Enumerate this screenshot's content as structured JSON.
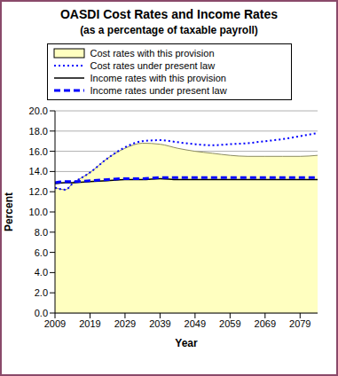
{
  "chart_data": {
    "type": "line",
    "title": "OASDI Cost Rates and Income Rates",
    "subtitle": "(as a percentage of taxable payroll)",
    "x_label": "Year",
    "y_label": "Percent",
    "x": [
      2009,
      2012,
      2014,
      2019,
      2024,
      2029,
      2034,
      2039,
      2044,
      2049,
      2054,
      2059,
      2064,
      2069,
      2074,
      2079,
      2084
    ],
    "series": [
      {
        "name": "Cost rates with this provision",
        "type": "area",
        "color": "#ffffc0",
        "line_style": "solid",
        "values": [
          12.4,
          12.2,
          12.8,
          13.9,
          15.3,
          16.3,
          16.8,
          16.7,
          16.3,
          16.0,
          15.8,
          15.6,
          15.5,
          15.5,
          15.5,
          15.5,
          15.6
        ]
      },
      {
        "name": "Cost rates under present law",
        "type": "line",
        "color": "#0000ff",
        "line_style": "dotted",
        "values": [
          12.4,
          12.2,
          12.8,
          13.9,
          15.3,
          16.4,
          17.0,
          17.1,
          16.9,
          16.7,
          16.6,
          16.7,
          16.8,
          17.0,
          17.2,
          17.5,
          17.8
        ]
      },
      {
        "name": "Income rates with this provision",
        "type": "line",
        "color": "#000000",
        "line_style": "solid",
        "values": [
          12.8,
          12.9,
          12.9,
          13.0,
          13.1,
          13.2,
          13.2,
          13.3,
          13.2,
          13.2,
          13.2,
          13.2,
          13.2,
          13.2,
          13.2,
          13.2,
          13.2
        ]
      },
      {
        "name": "Income rates under present law",
        "type": "line",
        "color": "#0000ff",
        "line_style": "dashed",
        "values": [
          12.9,
          13.0,
          13.0,
          13.1,
          13.2,
          13.3,
          13.3,
          13.4,
          13.4,
          13.4,
          13.4,
          13.4,
          13.4,
          13.4,
          13.4,
          13.4,
          13.4
        ]
      }
    ],
    "xlim": [
      2009,
      2084
    ],
    "xticks": [
      2009,
      2019,
      2029,
      2039,
      2049,
      2059,
      2069,
      2079
    ],
    "ylim": [
      0,
      20
    ],
    "yticks": [
      {
        "value": 0,
        "label": "0.0"
      },
      {
        "value": 2,
        "label": "2.0"
      },
      {
        "value": 4,
        "label": "4.0"
      },
      {
        "value": 6,
        "label": "6.0"
      },
      {
        "value": 8,
        "label": "8.0"
      },
      {
        "value": 10,
        "label": "10.0"
      },
      {
        "value": 12,
        "label": "12.0"
      },
      {
        "value": 14,
        "label": "14.0"
      },
      {
        "value": 16,
        "label": "16.0"
      },
      {
        "value": 18,
        "label": "18.0"
      },
      {
        "value": 20,
        "label": "20.0"
      }
    ],
    "grid": true,
    "legend": "top"
  }
}
